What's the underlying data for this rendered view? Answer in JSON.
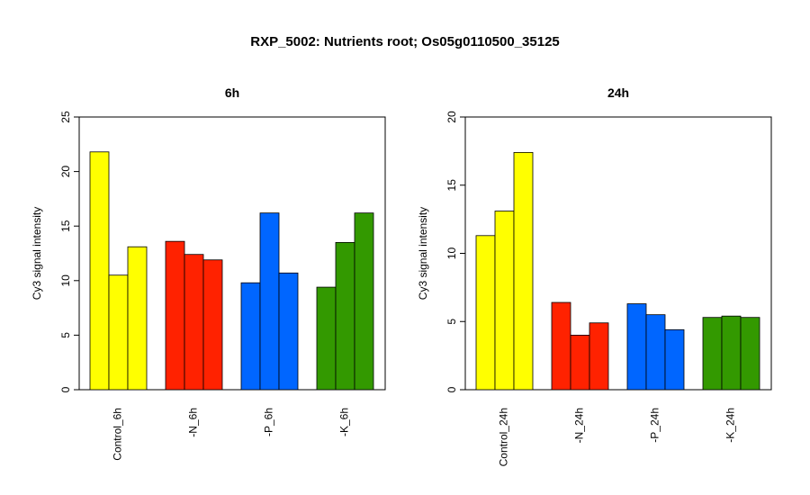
{
  "title": "RXP_5002: Nutrients root; Os05g0110500_35125",
  "chart_data": [
    {
      "type": "bar",
      "title": "6h",
      "ylabel": "Cy3 signal intensity",
      "ylim": [
        0,
        25
      ],
      "yticks": [
        0,
        5,
        10,
        15,
        20,
        25
      ],
      "categories": [
        "Control_6h",
        "-N_6h",
        "-P_6h",
        "-K_6h"
      ],
      "group_colors": [
        "#ffff00",
        "#ff2200",
        "#0066ff",
        "#339900"
      ],
      "values": [
        [
          21.8,
          10.5,
          13.1
        ],
        [
          13.6,
          12.4,
          11.9
        ],
        [
          9.8,
          16.2,
          10.7
        ],
        [
          9.4,
          13.5,
          16.2
        ]
      ]
    },
    {
      "type": "bar",
      "title": "24h",
      "ylabel": "Cy3 signal intensity",
      "ylim": [
        0,
        20
      ],
      "yticks": [
        0,
        5,
        10,
        15,
        20
      ],
      "categories": [
        "Control_24h",
        "-N_24h",
        "-P_24h",
        "-K_24h"
      ],
      "group_colors": [
        "#ffff00",
        "#ff2200",
        "#0066ff",
        "#339900"
      ],
      "values": [
        [
          11.3,
          13.1,
          17.4
        ],
        [
          6.4,
          4.0,
          4.9
        ],
        [
          6.3,
          5.5,
          4.4
        ],
        [
          5.3,
          5.4,
          5.3
        ]
      ]
    }
  ]
}
